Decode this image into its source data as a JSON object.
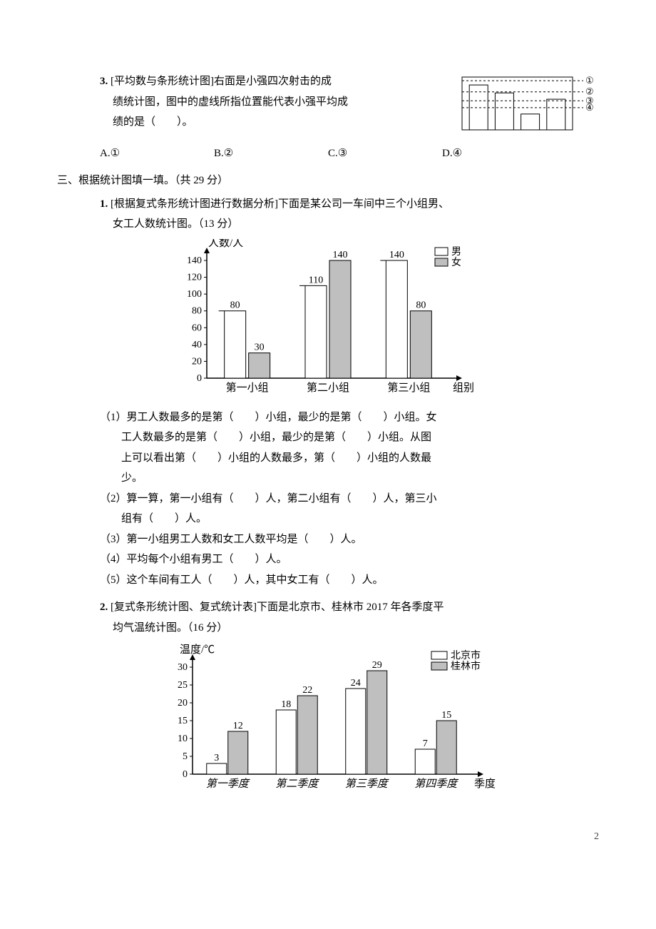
{
  "q3": {
    "num": "3.",
    "tag": "[平均数与条形统计图]",
    "text1": "右面是小强四次射击的成",
    "text2": "绩统计图，图中的虚线所指位置能代表小强平均成",
    "text3": "绩的是（　　）。",
    "options": {
      "a": "A.①",
      "b": "B.②",
      "c": "C.③",
      "d": "D.④"
    },
    "mini_chart": {
      "bars": [
        85,
        70,
        30,
        58
      ],
      "lines": [
        {
          "y": 93,
          "label": "①"
        },
        {
          "y": 72,
          "label": "②"
        },
        {
          "y": 55,
          "label": "③"
        },
        {
          "y": 42,
          "label": "④"
        }
      ],
      "bar_fill": "#ffffff",
      "bar_stroke": "#000000",
      "dash": "3 3"
    }
  },
  "section3": {
    "title": "三、根据统计图填一填。（共 29 分）"
  },
  "q31": {
    "num": "1.",
    "tag": "[根据复式条形统计图进行数据分析]",
    "text1": "下面是某公司一车间中三个小组男、",
    "text2": "女工人数统计图。（13 分）",
    "chart": {
      "ylabel": "人数/人",
      "xlabel": "组别",
      "legend": {
        "a": "男",
        "b": "女"
      },
      "ymax": 140,
      "ytick": 20,
      "categories": [
        "第一小组",
        "第二小组",
        "第三小组"
      ],
      "male": [
        80,
        110,
        140
      ],
      "female": [
        30,
        140,
        80
      ],
      "color_male": "#ffffff",
      "color_female": "#bfbfbf",
      "stroke": "#000000"
    },
    "p1a": "（1）男工人数最多的是第（　　）小组，最少的是第（　　）小组。女",
    "p1b": "工人数最多的是第（　　）小组，最少的是第（　　）小组。从图",
    "p1c": "上可以看出第（　　）小组的人数最多，第（　　）小组的人数最",
    "p1d": "少。",
    "p2a": "（2）算一算，第一小组有（　　）人，第二小组有（　　）人，第三小",
    "p2b": "组有（　　）人。",
    "p3": "（3）第一小组男工人数和女工人数平均是（　　）人。",
    "p4": "（4）平均每个小组有男工（　　）人。",
    "p5": "（5）这个车间有工人（　　）人，其中女工有（　　）人。"
  },
  "q32": {
    "num": "2.",
    "tag": "[复式条形统计图、复式统计表]",
    "text1": "下面是北京市、桂林市 2017 年各季度平",
    "text2": "均气温统计图。（16 分）",
    "chart": {
      "ylabel": "温度/℃",
      "xlabel": "季度",
      "legend": {
        "a": "北京市",
        "b": "桂林市"
      },
      "ymax": 30,
      "ytick": 5,
      "categories": [
        "第一季度",
        "第二季度",
        "第三季度",
        "第四季度"
      ],
      "beijing": [
        3,
        18,
        24,
        7
      ],
      "guilin": [
        12,
        22,
        29,
        15
      ],
      "color_beijing": "#ffffff",
      "color_guilin": "#bfbfbf",
      "stroke": "#000000"
    }
  },
  "page": {
    "num": "2"
  }
}
